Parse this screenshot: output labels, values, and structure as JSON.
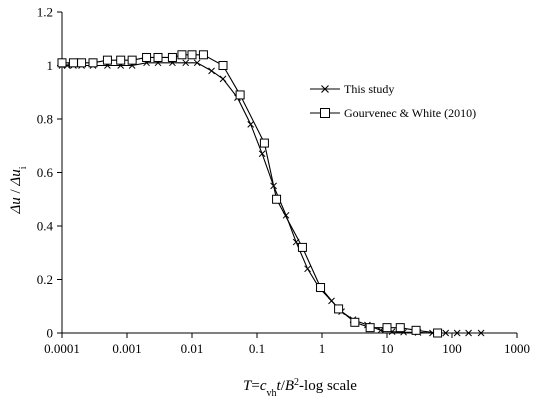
{
  "chart_data": {
    "type": "line",
    "xscale": "log",
    "xlim": [
      0.0001,
      1000
    ],
    "ylim": [
      0,
      1.2
    ],
    "x_ticks": [
      "0.0001",
      "0.001",
      "0.01",
      "0.1",
      "1",
      "10",
      "100",
      "1000"
    ],
    "y_ticks": [
      "0",
      "0.2",
      "0.4",
      "0.6",
      "0.8",
      "1",
      "1.2"
    ],
    "ylabel": "Δu / Δu_i",
    "xlabel": "T=c_vh t/B^2-log scale",
    "grid": false,
    "legend_position": "right",
    "series": [
      {
        "name": "This study",
        "marker": "x",
        "points": [
          [
            0.0001,
            1.0
          ],
          [
            0.00012,
            1.0
          ],
          [
            0.00015,
            1.0
          ],
          [
            0.0002,
            1.0
          ],
          [
            0.0003,
            1.0
          ],
          [
            0.0005,
            1.0
          ],
          [
            0.0008,
            1.0
          ],
          [
            0.0012,
            1.0
          ],
          [
            0.002,
            1.01
          ],
          [
            0.003,
            1.01
          ],
          [
            0.005,
            1.01
          ],
          [
            0.008,
            1.01
          ],
          [
            0.012,
            1.01
          ],
          [
            0.02,
            0.98
          ],
          [
            0.03,
            0.95
          ],
          [
            0.05,
            0.88
          ],
          [
            0.08,
            0.78
          ],
          [
            0.12,
            0.67
          ],
          [
            0.18,
            0.55
          ],
          [
            0.28,
            0.44
          ],
          [
            0.4,
            0.34
          ],
          [
            0.6,
            0.24
          ],
          [
            0.9,
            0.17
          ],
          [
            1.4,
            0.12
          ],
          [
            2.0,
            0.08
          ],
          [
            3.0,
            0.05
          ],
          [
            5.0,
            0.03
          ],
          [
            8.0,
            0.01
          ],
          [
            12.0,
            0.005
          ],
          [
            18.0,
            0.003
          ],
          [
            30.0,
            0.002
          ],
          [
            50.0,
            0.0
          ],
          [
            80.0,
            0.0
          ],
          [
            120.0,
            0.0
          ],
          [
            180.0,
            0.0
          ],
          [
            280.0,
            0.0
          ]
        ]
      },
      {
        "name": "Gourvenec & White (2010)",
        "marker": "square",
        "points": [
          [
            0.0001,
            1.01
          ],
          [
            0.00015,
            1.01
          ],
          [
            0.0002,
            1.01
          ],
          [
            0.0003,
            1.01
          ],
          [
            0.0005,
            1.02
          ],
          [
            0.0008,
            1.02
          ],
          [
            0.0012,
            1.02
          ],
          [
            0.002,
            1.03
          ],
          [
            0.003,
            1.03
          ],
          [
            0.005,
            1.03
          ],
          [
            0.007,
            1.04
          ],
          [
            0.01,
            1.04
          ],
          [
            0.015,
            1.04
          ],
          [
            0.03,
            1.0
          ],
          [
            0.055,
            0.89
          ],
          [
            0.13,
            0.71
          ],
          [
            0.2,
            0.5
          ],
          [
            0.5,
            0.32
          ],
          [
            0.95,
            0.17
          ],
          [
            1.8,
            0.09
          ],
          [
            3.2,
            0.04
          ],
          [
            5.5,
            0.02
          ],
          [
            10.0,
            0.02
          ],
          [
            16.0,
            0.02
          ],
          [
            28.0,
            0.01
          ],
          [
            60.0,
            0.0
          ]
        ]
      }
    ]
  }
}
